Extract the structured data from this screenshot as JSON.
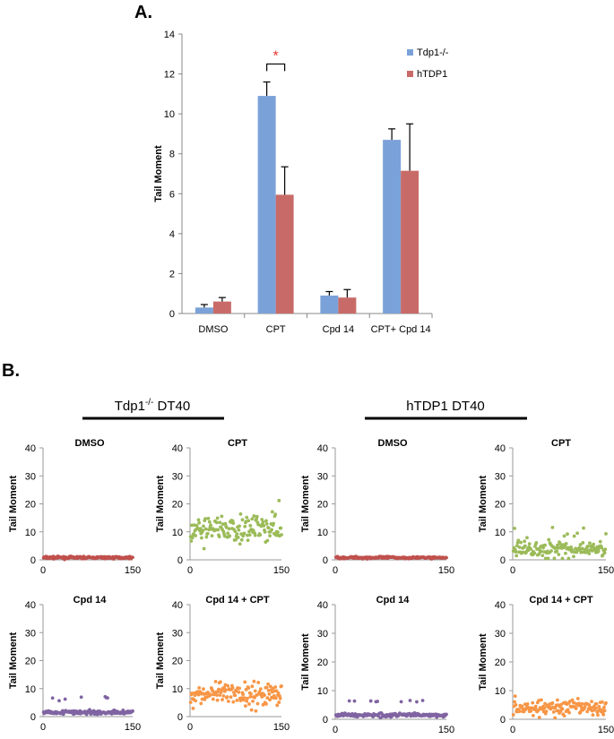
{
  "panel_labels": {
    "a": "A.",
    "b": "B."
  },
  "colors": {
    "tdp1": "#7ba2d8",
    "htdp1": "#c86b68",
    "red_scatter": "#c0504d",
    "green_scatter": "#9bbb59",
    "purple_scatter": "#8064a2",
    "orange_scatter": "#f79646",
    "axis": "#888888",
    "sig": "#e8302a"
  },
  "group_headers": [
    {
      "name": "Tdp1",
      "superscript": "-/-",
      "suffix": " DT40"
    },
    {
      "name": "hTDP1 DT40",
      "superscript": "",
      "suffix": ""
    }
  ],
  "chart_data": [
    {
      "type": "bar",
      "title": "",
      "ylabel": "Tail Moment",
      "xlabel": "",
      "ylim": [
        0,
        14
      ],
      "yticks": [
        0,
        2,
        4,
        6,
        8,
        10,
        12,
        14
      ],
      "categories": [
        "DMSO",
        "CPT",
        "Cpd 14",
        "CPT+ Cpd 14"
      ],
      "series": [
        {
          "name": "Tdp1-/-",
          "color": "#7ba2d8",
          "values": [
            0.3,
            10.9,
            0.9,
            8.7
          ],
          "errors": [
            0.15,
            0.7,
            0.2,
            0.55
          ]
        },
        {
          "name": "hTDP1",
          "color": "#c86b68",
          "values": [
            0.6,
            5.95,
            0.8,
            7.15
          ],
          "errors": [
            0.2,
            1.4,
            0.4,
            2.35
          ]
        }
      ],
      "significance": {
        "label": "*",
        "category": "CPT"
      },
      "legend": "top-right"
    },
    {
      "type": "scatter",
      "title": "DMSO",
      "ylabel": "Tail Moment",
      "xlim": [
        0,
        150
      ],
      "ylim": [
        0,
        40
      ],
      "xticks": [
        0,
        150
      ],
      "yticks": [
        0,
        10,
        20,
        30,
        40
      ],
      "color": "#c0504d",
      "n": 150,
      "points_description_value": "mostly 0-1"
    },
    {
      "type": "scatter",
      "title": "CPT",
      "ylabel": "Tail Moment",
      "xlim": [
        0,
        150
      ],
      "ylim": [
        0,
        40
      ],
      "xticks": [
        0,
        150
      ],
      "yticks": [
        0,
        10,
        20,
        30,
        40
      ],
      "color": "#9bbb59",
      "n": 150
    },
    {
      "type": "scatter",
      "title": "DMSO",
      "ylabel": "Tail Moment",
      "xlim": [
        0,
        150
      ],
      "ylim": [
        0,
        40
      ],
      "xticks": [
        0,
        150
      ],
      "yticks": [
        0,
        10,
        20,
        30,
        40
      ],
      "color": "#c0504d",
      "n": 150
    },
    {
      "type": "scatter",
      "title": "CPT",
      "ylabel": "Tail Moment",
      "xlim": [
        0,
        150
      ],
      "ylim": [
        0,
        40
      ],
      "xticks": [
        0,
        150
      ],
      "yticks": [
        0,
        10,
        20,
        30,
        40
      ],
      "color": "#9bbb59",
      "n": 150
    },
    {
      "type": "scatter",
      "title": "Cpd 14",
      "ylabel": "Tail Moment",
      "xlim": [
        0,
        150
      ],
      "ylim": [
        0,
        40
      ],
      "xticks": [
        0,
        150
      ],
      "yticks": [
        0,
        10,
        20,
        30,
        40
      ],
      "color": "#8064a2",
      "n": 150
    },
    {
      "type": "scatter",
      "title": "Cpd 14 + CPT",
      "ylabel": "Tail Moment",
      "xlim": [
        0,
        150
      ],
      "ylim": [
        0,
        40
      ],
      "xticks": [
        0,
        150
      ],
      "yticks": [
        0,
        10,
        20,
        30,
        40
      ],
      "color": "#f79646",
      "n": 150
    },
    {
      "type": "scatter",
      "title": "Cpd 14",
      "ylabel": "Tail Moment",
      "xlim": [
        0,
        150
      ],
      "ylim": [
        0,
        40
      ],
      "xticks": [
        0,
        150
      ],
      "yticks": [
        0,
        10,
        20,
        30,
        40
      ],
      "color": "#8064a2",
      "n": 150
    },
    {
      "type": "scatter",
      "title": "Cpd 14 + CPT",
      "ylabel": "Tail Moment",
      "xlim": [
        0,
        150
      ],
      "ylim": [
        0,
        40
      ],
      "xticks": [
        0,
        150
      ],
      "yticks": [
        0,
        10,
        20,
        30,
        40
      ],
      "color": "#f79646",
      "n": 150
    }
  ]
}
